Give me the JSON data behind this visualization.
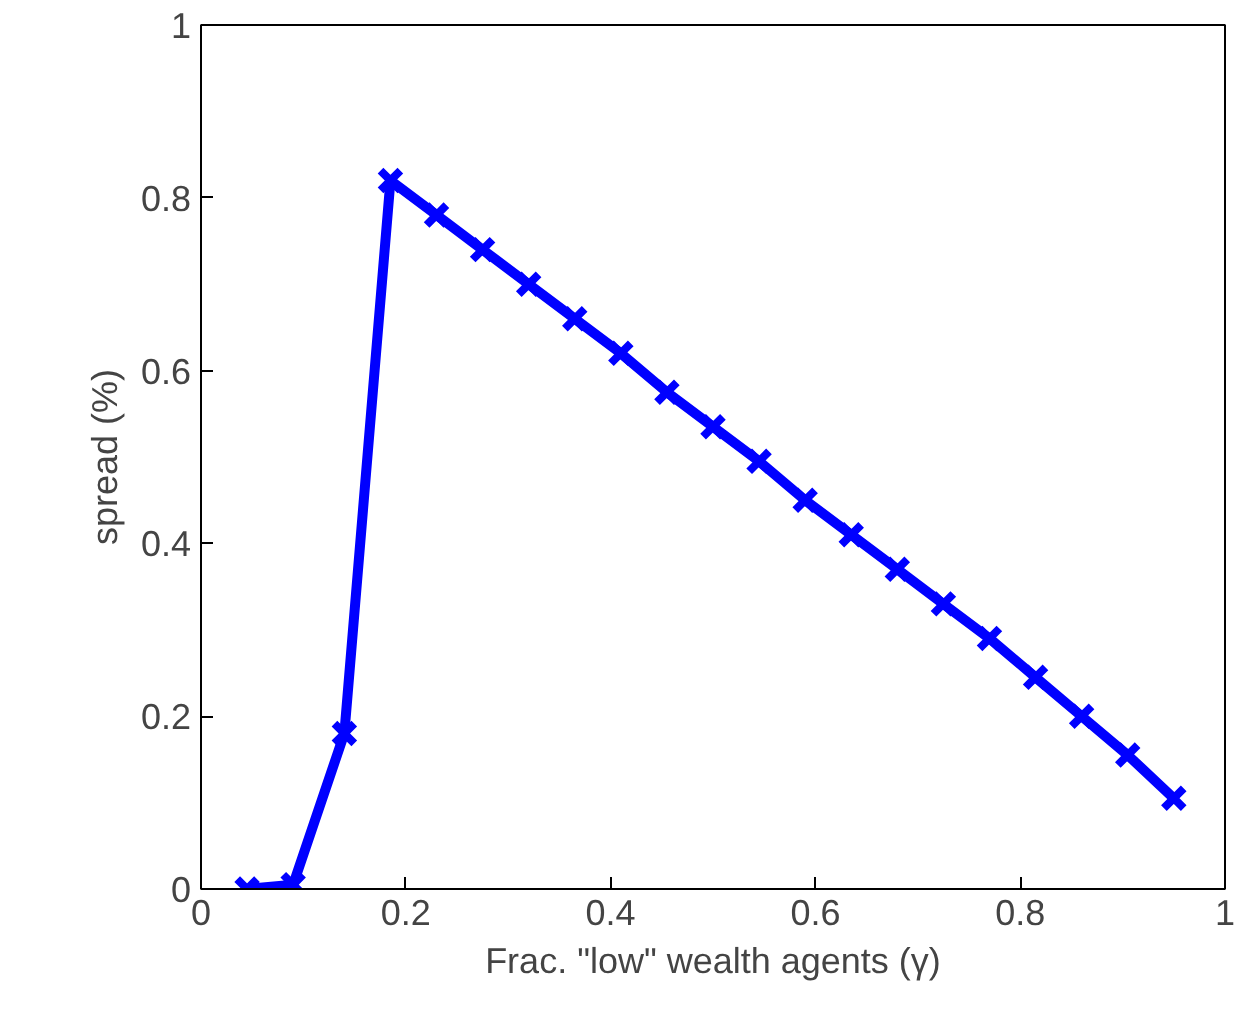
{
  "chart_data": {
    "type": "line",
    "xlabel": "Frac. \"low\" wealth agents (γ)",
    "ylabel": "spread (%)",
    "x": [
      0.045,
      0.09,
      0.14,
      0.185,
      0.23,
      0.275,
      0.32,
      0.365,
      0.41,
      0.455,
      0.5,
      0.545,
      0.59,
      0.635,
      0.68,
      0.725,
      0.77,
      0.815,
      0.86,
      0.905,
      0.95
    ],
    "series": [
      {
        "color": "#0000ff",
        "values": [
          0,
          0.005,
          0.18,
          0.82,
          0.78,
          0.74,
          0.7,
          0.66,
          0.62,
          0.575,
          0.535,
          0.495,
          0.45,
          0.41,
          0.37,
          0.33,
          0.29,
          0.245,
          0.2,
          0.155,
          0.105
        ]
      }
    ],
    "xlim": [
      0,
      1
    ],
    "ylim": [
      0,
      1
    ],
    "xticks": [
      0,
      0.2,
      0.4,
      0.6,
      0.8,
      1
    ],
    "yticks": [
      0,
      0.2,
      0.4,
      0.6,
      0.8,
      1
    ],
    "marker": "cross",
    "line_style": "solid",
    "grid": false
  }
}
